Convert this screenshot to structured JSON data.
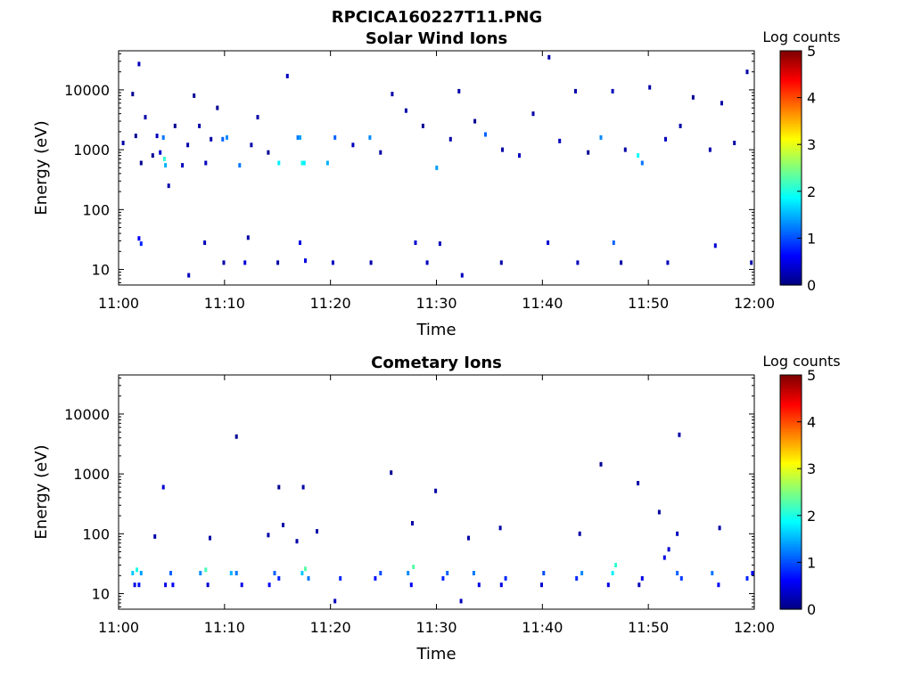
{
  "figure": {
    "title": "RPCICA160227T11.PNG"
  },
  "colors": {
    "background": "#ffffff",
    "axis": "#000000",
    "colormap": [
      "#00007f",
      "#0000ff",
      "#007fff",
      "#00ffff",
      "#7fff7f",
      "#ffff00",
      "#ff7f00",
      "#ff0000",
      "#7f0000"
    ]
  },
  "chart_data": [
    {
      "type": "heatmap",
      "title": "Solar Wind Ions",
      "xlabel": "Time",
      "ylabel": "Energy (eV)",
      "yscale": "log",
      "x_range": [
        "11:00",
        "12:00"
      ],
      "ylim": [
        5.5,
        45000
      ],
      "x_ticks": [
        "11:00",
        "11:10",
        "11:20",
        "11:30",
        "11:40",
        "11:50",
        "12:00"
      ],
      "y_ticks": [
        "10",
        "100",
        "1000",
        "10000"
      ],
      "colorbar": {
        "label": "Log counts",
        "range": [
          0,
          5
        ],
        "ticks": [
          "0",
          "1",
          "2",
          "3",
          "4",
          "5"
        ]
      },
      "cells": [
        {
          "t": 0.3,
          "e": 1300,
          "c": 0.2
        },
        {
          "t": 1.2,
          "e": 8500,
          "c": 0.1
        },
        {
          "t": 1.5,
          "e": 1700,
          "c": 0.1
        },
        {
          "t": 1.8,
          "e": 27000,
          "c": 0.3
        },
        {
          "t": 2.0,
          "e": 600,
          "c": 0.1
        },
        {
          "t": 2.4,
          "e": 3500,
          "c": 0.2
        },
        {
          "t": 3.1,
          "e": 800,
          "c": 0.1
        },
        {
          "t": 3.5,
          "e": 1700,
          "c": 0.3
        },
        {
          "t": 3.8,
          "e": 900,
          "c": 0.4
        },
        {
          "t": 4.1,
          "e": 1600,
          "c": 1.2
        },
        {
          "t": 4.2,
          "e": 700,
          "c": 2.1
        },
        {
          "t": 4.3,
          "e": 550,
          "c": 1.5
        },
        {
          "t": 4.6,
          "e": 250,
          "c": 0.2
        },
        {
          "t": 5.2,
          "e": 2500,
          "c": 0.1
        },
        {
          "t": 5.9,
          "e": 550,
          "c": 0.3
        },
        {
          "t": 6.4,
          "e": 1200,
          "c": 0.2
        },
        {
          "t": 7.0,
          "e": 8000,
          "c": 0.1
        },
        {
          "t": 7.5,
          "e": 2500,
          "c": 0.2
        },
        {
          "t": 8.1,
          "e": 600,
          "c": 0.3
        },
        {
          "t": 8.6,
          "e": 1500,
          "c": 0.2
        },
        {
          "t": 9.2,
          "e": 5000,
          "c": 0.1
        },
        {
          "t": 9.7,
          "e": 1500,
          "c": 1.1
        },
        {
          "t": 10.1,
          "e": 1600,
          "c": 1.3
        },
        {
          "t": 11.3,
          "e": 550,
          "c": 1.2
        },
        {
          "t": 12.4,
          "e": 1200,
          "c": 0.2
        },
        {
          "t": 13.0,
          "e": 3500,
          "c": 0.2
        },
        {
          "t": 14.0,
          "e": 900,
          "c": 0.1
        },
        {
          "t": 15.0,
          "e": 600,
          "c": 1.8
        },
        {
          "t": 15.8,
          "e": 17000,
          "c": 0.3
        },
        {
          "t": 16.8,
          "e": 1600,
          "c": 1.2
        },
        {
          "t": 17.0,
          "e": 1600,
          "c": 1.4
        },
        {
          "t": 17.2,
          "e": 600,
          "c": 2.0
        },
        {
          "t": 17.4,
          "e": 600,
          "c": 1.8
        },
        {
          "t": 19.6,
          "e": 600,
          "c": 1.5
        },
        {
          "t": 20.3,
          "e": 1600,
          "c": 1.1
        },
        {
          "t": 22.0,
          "e": 1200,
          "c": 0.3
        },
        {
          "t": 23.6,
          "e": 1600,
          "c": 1.3
        },
        {
          "t": 24.6,
          "e": 900,
          "c": 0.2
        },
        {
          "t": 25.7,
          "e": 8500,
          "c": 0.2
        },
        {
          "t": 27.0,
          "e": 4500,
          "c": 0.2
        },
        {
          "t": 28.6,
          "e": 2500,
          "c": 0.1
        },
        {
          "t": 29.9,
          "e": 500,
          "c": 1.4
        },
        {
          "t": 31.2,
          "e": 1500,
          "c": 0.2
        },
        {
          "t": 32.0,
          "e": 9500,
          "c": 0.2
        },
        {
          "t": 33.5,
          "e": 3000,
          "c": 0.1
        },
        {
          "t": 34.5,
          "e": 1800,
          "c": 1.1
        },
        {
          "t": 36.1,
          "e": 1000,
          "c": 0.2
        },
        {
          "t": 37.7,
          "e": 800,
          "c": 0.3
        },
        {
          "t": 39.0,
          "e": 4000,
          "c": 0.2
        },
        {
          "t": 40.5,
          "e": 35000,
          "c": 0.2
        },
        {
          "t": 41.5,
          "e": 1400,
          "c": 0.3
        },
        {
          "t": 43.0,
          "e": 9500,
          "c": 0.2
        },
        {
          "t": 44.2,
          "e": 900,
          "c": 0.1
        },
        {
          "t": 45.4,
          "e": 1600,
          "c": 1.3
        },
        {
          "t": 46.5,
          "e": 9500,
          "c": 0.3
        },
        {
          "t": 47.7,
          "e": 1000,
          "c": 0.2
        },
        {
          "t": 48.9,
          "e": 800,
          "c": 1.9
        },
        {
          "t": 49.3,
          "e": 600,
          "c": 1.2
        },
        {
          "t": 50.0,
          "e": 11000,
          "c": 0.2
        },
        {
          "t": 51.5,
          "e": 1500,
          "c": 0.3
        },
        {
          "t": 52.9,
          "e": 2500,
          "c": 0.2
        },
        {
          "t": 54.1,
          "e": 7500,
          "c": 0.1
        },
        {
          "t": 55.7,
          "e": 1000,
          "c": 0.2
        },
        {
          "t": 56.8,
          "e": 6000,
          "c": 0.2
        },
        {
          "t": 58.0,
          "e": 1300,
          "c": 0.2
        },
        {
          "t": 59.2,
          "e": 20000,
          "c": 0.2
        },
        {
          "t": 1.8,
          "e": 33,
          "c": 0.6
        },
        {
          "t": 2.0,
          "e": 27,
          "c": 0.8
        },
        {
          "t": 6.5,
          "e": 8,
          "c": 0.3
        },
        {
          "t": 8.0,
          "e": 28,
          "c": 0.3
        },
        {
          "t": 9.8,
          "e": 13,
          "c": 0.2
        },
        {
          "t": 11.8,
          "e": 13,
          "c": 0.4
        },
        {
          "t": 12.1,
          "e": 34,
          "c": 0.2
        },
        {
          "t": 14.9,
          "e": 13,
          "c": 0.2
        },
        {
          "t": 17.0,
          "e": 28,
          "c": 0.5
        },
        {
          "t": 17.5,
          "e": 14,
          "c": 0.5
        },
        {
          "t": 20.1,
          "e": 13,
          "c": 0.3
        },
        {
          "t": 23.7,
          "e": 13,
          "c": 0.2
        },
        {
          "t": 27.9,
          "e": 28,
          "c": 0.4
        },
        {
          "t": 29.0,
          "e": 13,
          "c": 0.3
        },
        {
          "t": 30.2,
          "e": 27,
          "c": 0.3
        },
        {
          "t": 32.3,
          "e": 8,
          "c": 0.3
        },
        {
          "t": 36.0,
          "e": 13,
          "c": 0.2
        },
        {
          "t": 40.4,
          "e": 28,
          "c": 0.4
        },
        {
          "t": 43.2,
          "e": 13,
          "c": 0.3
        },
        {
          "t": 46.6,
          "e": 28,
          "c": 1.1
        },
        {
          "t": 47.3,
          "e": 13,
          "c": 0.2
        },
        {
          "t": 51.7,
          "e": 13,
          "c": 0.3
        },
        {
          "t": 56.2,
          "e": 25,
          "c": 0.4
        },
        {
          "t": 59.6,
          "e": 13,
          "c": 0.2
        },
        {
          "t": 59.9,
          "e": 13,
          "c": 0.2
        }
      ]
    },
    {
      "type": "heatmap",
      "title": "Cometary Ions",
      "xlabel": "Time",
      "ylabel": "Energy (eV)",
      "yscale": "log",
      "x_range": [
        "11:00",
        "12:00"
      ],
      "ylim": [
        5.5,
        45000
      ],
      "x_ticks": [
        "11:00",
        "11:10",
        "11:20",
        "11:30",
        "11:40",
        "11:50",
        "12:00"
      ],
      "y_ticks": [
        "10",
        "100",
        "1000",
        "10000"
      ],
      "colorbar": {
        "label": "Log counts",
        "range": [
          0,
          5
        ],
        "ticks": [
          "0",
          "1",
          "2",
          "3",
          "4",
          "5"
        ]
      },
      "cells": [
        {
          "t": 4.1,
          "e": 600,
          "c": 0.4
        },
        {
          "t": 11.0,
          "e": 4200,
          "c": 0.1
        },
        {
          "t": 15.0,
          "e": 600,
          "c": 0.1
        },
        {
          "t": 17.3,
          "e": 600,
          "c": 0.2
        },
        {
          "t": 25.6,
          "e": 1050,
          "c": 0.1
        },
        {
          "t": 29.8,
          "e": 520,
          "c": 0.2
        },
        {
          "t": 45.4,
          "e": 1450,
          "c": 0.1
        },
        {
          "t": 48.9,
          "e": 700,
          "c": 0.2
        },
        {
          "t": 52.8,
          "e": 4500,
          "c": 0.2
        },
        {
          "t": 3.3,
          "e": 90,
          "c": 0.2
        },
        {
          "t": 8.5,
          "e": 85,
          "c": 0.2
        },
        {
          "t": 14.0,
          "e": 95,
          "c": 0.2
        },
        {
          "t": 15.4,
          "e": 140,
          "c": 0.2
        },
        {
          "t": 16.7,
          "e": 75,
          "c": 0.2
        },
        {
          "t": 18.6,
          "e": 110,
          "c": 0.2
        },
        {
          "t": 27.6,
          "e": 150,
          "c": 0.2
        },
        {
          "t": 32.9,
          "e": 85,
          "c": 0.2
        },
        {
          "t": 35.9,
          "e": 125,
          "c": 0.2
        },
        {
          "t": 43.4,
          "e": 100,
          "c": 0.2
        },
        {
          "t": 50.9,
          "e": 230,
          "c": 0.2
        },
        {
          "t": 52.6,
          "e": 100,
          "c": 0.3
        },
        {
          "t": 56.6,
          "e": 125,
          "c": 0.2
        },
        {
          "t": 51.4,
          "e": 40,
          "c": 0.5
        },
        {
          "t": 51.8,
          "e": 55,
          "c": 0.4
        },
        {
          "t": 1.2,
          "e": 22,
          "c": 1.6
        },
        {
          "t": 1.6,
          "e": 25,
          "c": 2.0
        },
        {
          "t": 2.0,
          "e": 22,
          "c": 1.4
        },
        {
          "t": 1.4,
          "e": 14,
          "c": 0.5
        },
        {
          "t": 1.8,
          "e": 14,
          "c": 0.7
        },
        {
          "t": 4.8,
          "e": 22,
          "c": 1.1
        },
        {
          "t": 5.0,
          "e": 14,
          "c": 0.6
        },
        {
          "t": 4.3,
          "e": 14,
          "c": 0.5
        },
        {
          "t": 7.6,
          "e": 22,
          "c": 1.3
        },
        {
          "t": 8.1,
          "e": 25,
          "c": 2.2
        },
        {
          "t": 8.3,
          "e": 14,
          "c": 0.4
        },
        {
          "t": 10.5,
          "e": 22,
          "c": 1.5
        },
        {
          "t": 11.0,
          "e": 22,
          "c": 1.2
        },
        {
          "t": 11.5,
          "e": 14,
          "c": 0.5
        },
        {
          "t": 14.1,
          "e": 14,
          "c": 0.6
        },
        {
          "t": 14.6,
          "e": 22,
          "c": 1.1
        },
        {
          "t": 15.0,
          "e": 18,
          "c": 0.8
        },
        {
          "t": 17.2,
          "e": 22,
          "c": 1.6
        },
        {
          "t": 17.5,
          "e": 26,
          "c": 2.3
        },
        {
          "t": 17.8,
          "e": 18,
          "c": 1.2
        },
        {
          "t": 20.8,
          "e": 18,
          "c": 0.8
        },
        {
          "t": 20.3,
          "e": 7.5,
          "c": 0.3
        },
        {
          "t": 24.1,
          "e": 18,
          "c": 0.7
        },
        {
          "t": 24.6,
          "e": 22,
          "c": 1.0
        },
        {
          "t": 27.2,
          "e": 22,
          "c": 1.3
        },
        {
          "t": 27.7,
          "e": 28,
          "c": 2.3
        },
        {
          "t": 27.5,
          "e": 14,
          "c": 0.6
        },
        {
          "t": 30.5,
          "e": 18,
          "c": 0.8
        },
        {
          "t": 30.9,
          "e": 22,
          "c": 1.1
        },
        {
          "t": 32.2,
          "e": 7.5,
          "c": 0.3
        },
        {
          "t": 33.4,
          "e": 22,
          "c": 1.2
        },
        {
          "t": 33.9,
          "e": 14,
          "c": 0.5
        },
        {
          "t": 36.4,
          "e": 18,
          "c": 0.8
        },
        {
          "t": 36.0,
          "e": 14,
          "c": 0.5
        },
        {
          "t": 40.0,
          "e": 22,
          "c": 1.0
        },
        {
          "t": 39.8,
          "e": 14,
          "c": 0.4
        },
        {
          "t": 43.1,
          "e": 18,
          "c": 0.8
        },
        {
          "t": 43.6,
          "e": 22,
          "c": 1.3
        },
        {
          "t": 46.5,
          "e": 22,
          "c": 1.8
        },
        {
          "t": 46.8,
          "e": 30,
          "c": 2.1
        },
        {
          "t": 46.1,
          "e": 14,
          "c": 0.5
        },
        {
          "t": 49.3,
          "e": 18,
          "c": 0.5
        },
        {
          "t": 49.0,
          "e": 14,
          "c": 0.3
        },
        {
          "t": 52.6,
          "e": 22,
          "c": 1.1
        },
        {
          "t": 53.0,
          "e": 18,
          "c": 0.9
        },
        {
          "t": 55.9,
          "e": 22,
          "c": 1.2
        },
        {
          "t": 56.5,
          "e": 14,
          "c": 0.6
        },
        {
          "t": 59.2,
          "e": 18,
          "c": 0.8
        },
        {
          "t": 59.7,
          "e": 22,
          "c": 0.6
        }
      ]
    }
  ]
}
